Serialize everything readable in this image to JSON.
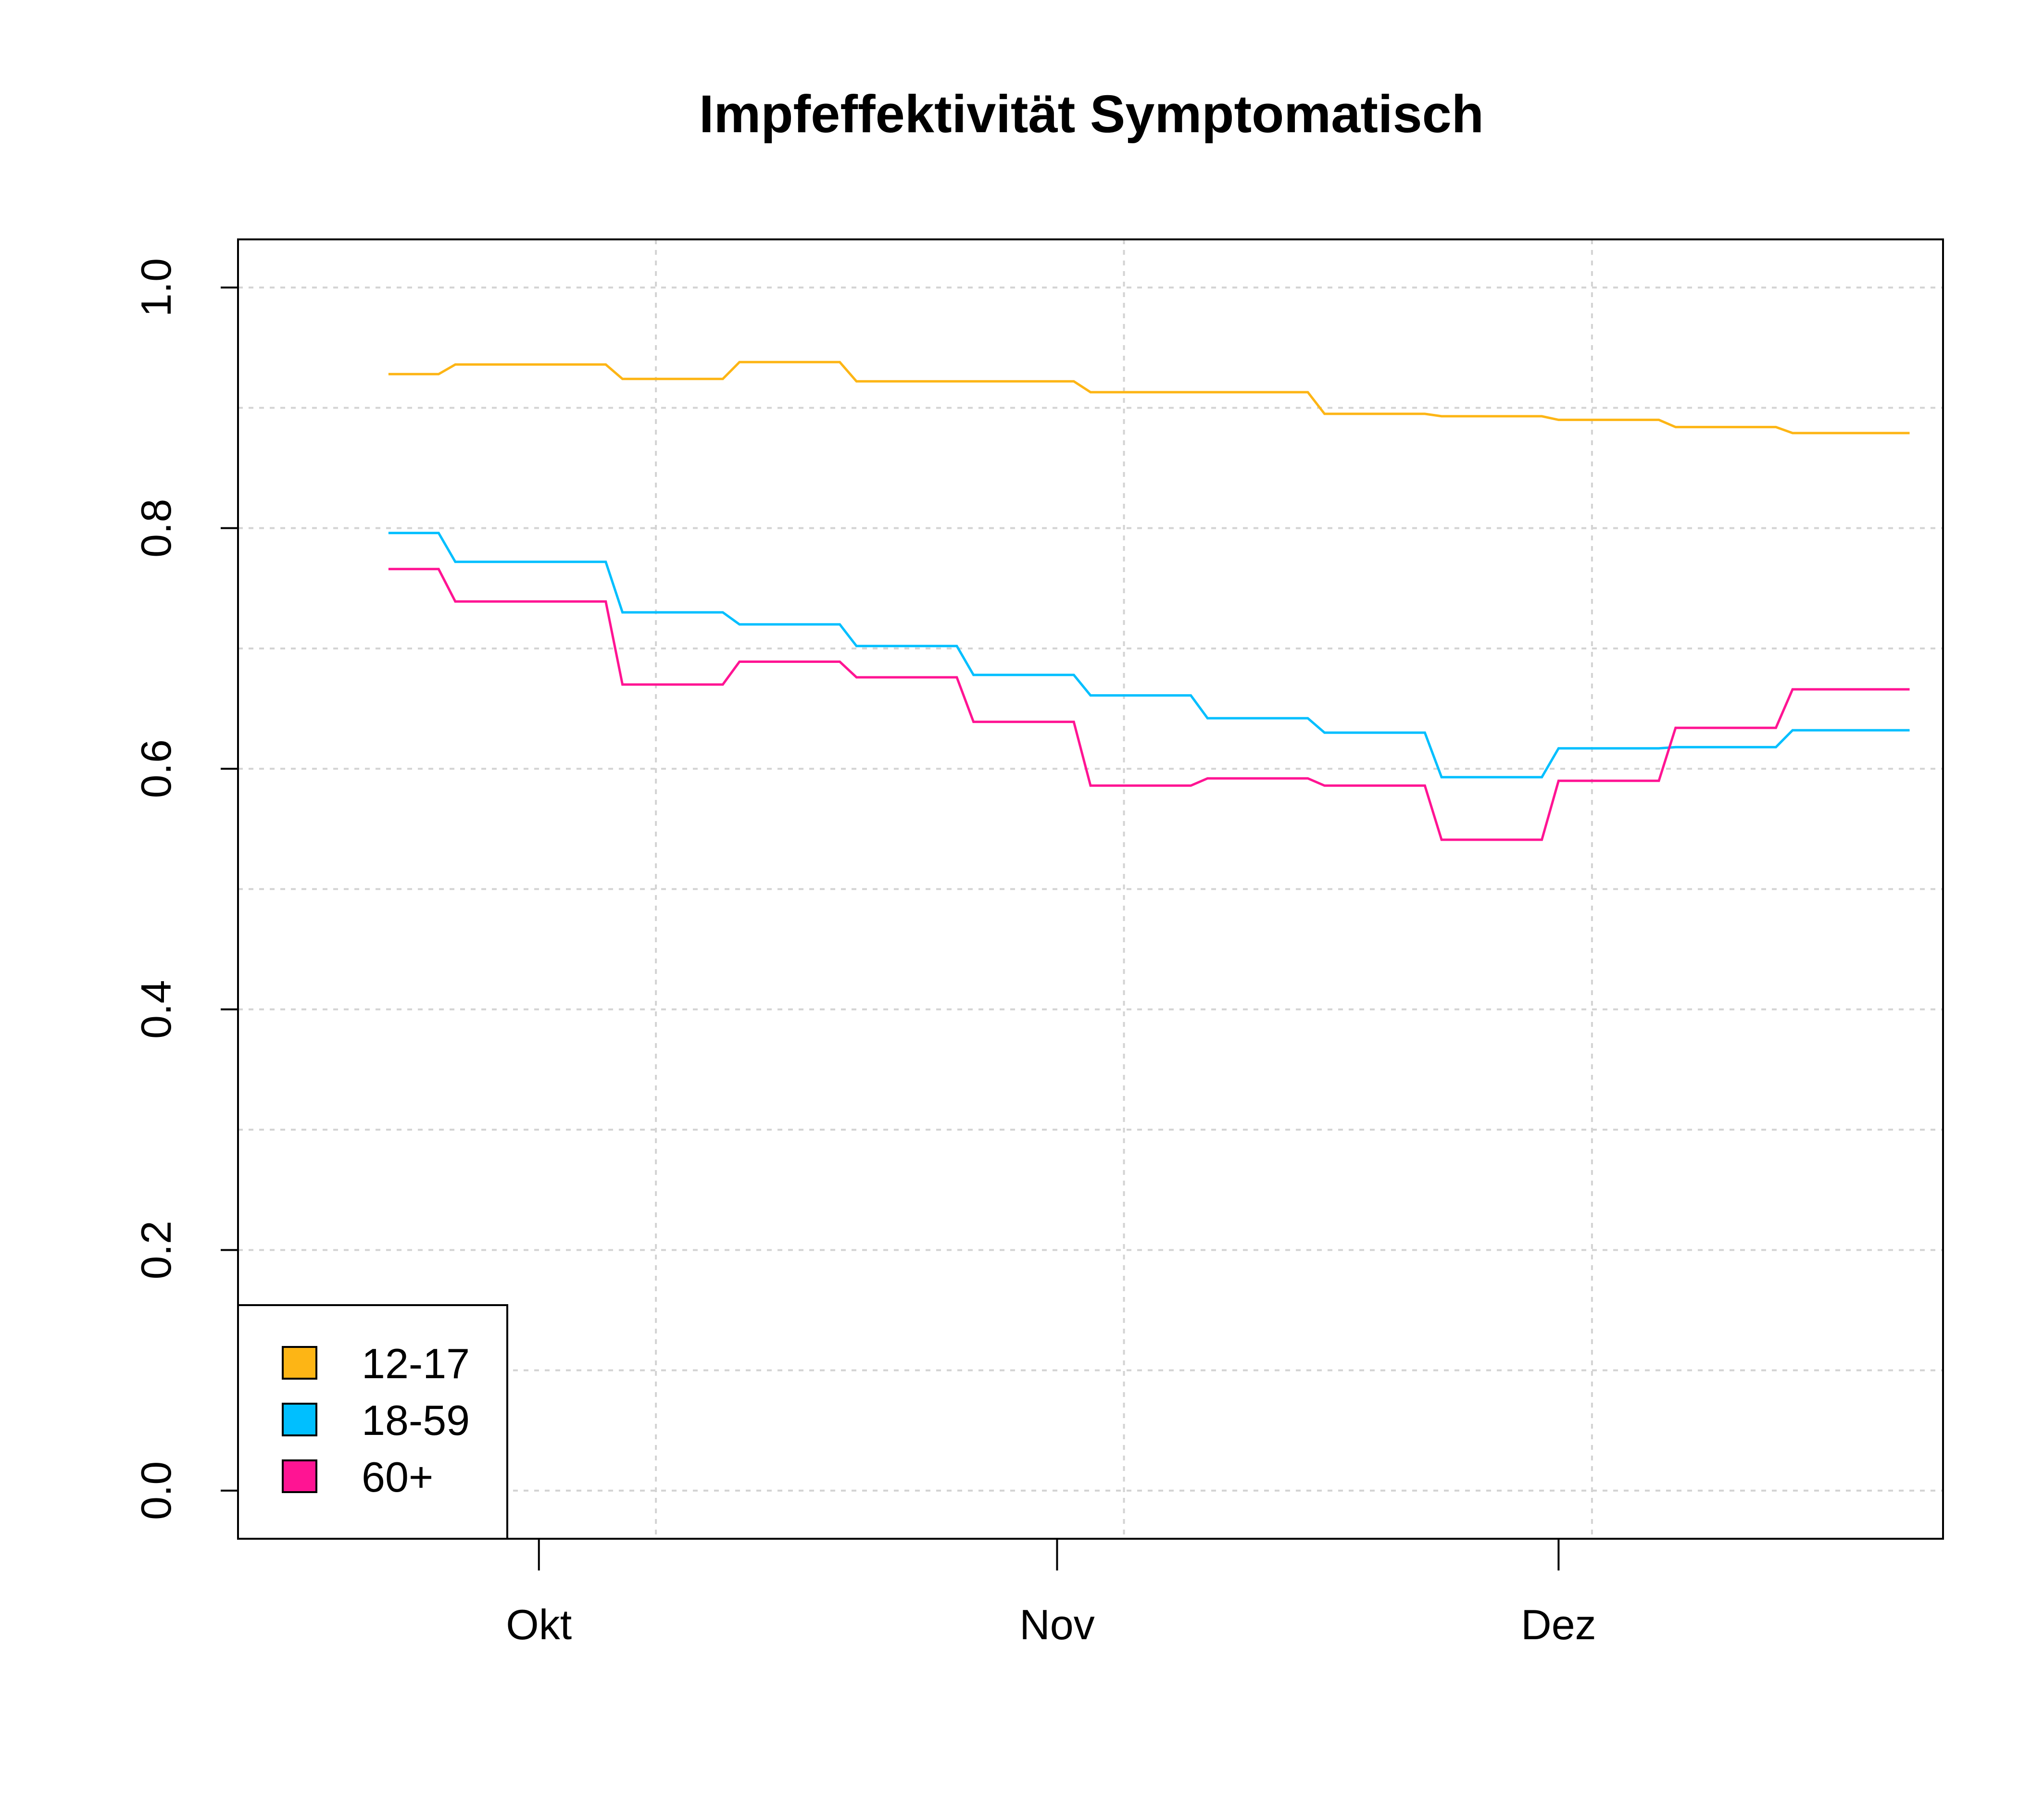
{
  "chart_data": {
    "type": "line",
    "title": "Impfeffektivität Symptomatisch",
    "xlabel": "",
    "ylabel": "",
    "x": [
      "09-22",
      "09-26",
      "09-29",
      "10-03",
      "10-06",
      "10-10",
      "10-13",
      "10-17",
      "10-20",
      "10-24",
      "10-27",
      "10-31",
      "11-03",
      "11-07",
      "11-10",
      "11-14",
      "11-17",
      "11-21",
      "11-24",
      "11-28",
      "12-01",
      "12-05",
      "12-08",
      "12-12",
      "12-15",
      "12-19"
    ],
    "x_ticks": [
      {
        "date": "10-01",
        "label": "Okt"
      },
      {
        "date": "11-01",
        "label": "Nov"
      },
      {
        "date": "12-01",
        "label": "Dez"
      }
    ],
    "xlim": [
      "09-13",
      "12-24"
    ],
    "ylim": [
      -0.04,
      1.04
    ],
    "y_ticks": [
      0.0,
      0.2,
      0.4,
      0.6,
      0.8,
      1.0
    ],
    "y_tick_labels": [
      "0.0",
      "0.2",
      "0.4",
      "0.6",
      "0.8",
      "1.0"
    ],
    "grid": true,
    "legend_position": "bottom-left",
    "series": [
      {
        "name": "12-17",
        "color": "#FDB515",
        "values": [
          0.928,
          0.936,
          0.936,
          0.936,
          0.924,
          0.924,
          0.938,
          0.938,
          0.922,
          0.922,
          0.922,
          0.922,
          0.913,
          0.913,
          0.913,
          0.913,
          0.895,
          0.895,
          0.893,
          0.893,
          0.89,
          0.89,
          0.884,
          0.884,
          0.879,
          0.879
        ]
      },
      {
        "name": "18-59",
        "color": "#00BFFF",
        "values": [
          0.796,
          0.772,
          0.772,
          0.772,
          0.73,
          0.73,
          0.72,
          0.72,
          0.702,
          0.702,
          0.678,
          0.678,
          0.661,
          0.661,
          0.642,
          0.642,
          0.63,
          0.63,
          0.593,
          0.593,
          0.617,
          0.617,
          0.618,
          0.618,
          0.632,
          0.632
        ]
      },
      {
        "name": "60+",
        "color": "#FF1493",
        "values": [
          0.766,
          0.739,
          0.739,
          0.739,
          0.67,
          0.67,
          0.689,
          0.689,
          0.676,
          0.676,
          0.639,
          0.639,
          0.586,
          0.586,
          0.592,
          0.592,
          0.586,
          0.586,
          0.541,
          0.541,
          0.59,
          0.59,
          0.634,
          0.634,
          0.666,
          0.666
        ]
      }
    ]
  }
}
